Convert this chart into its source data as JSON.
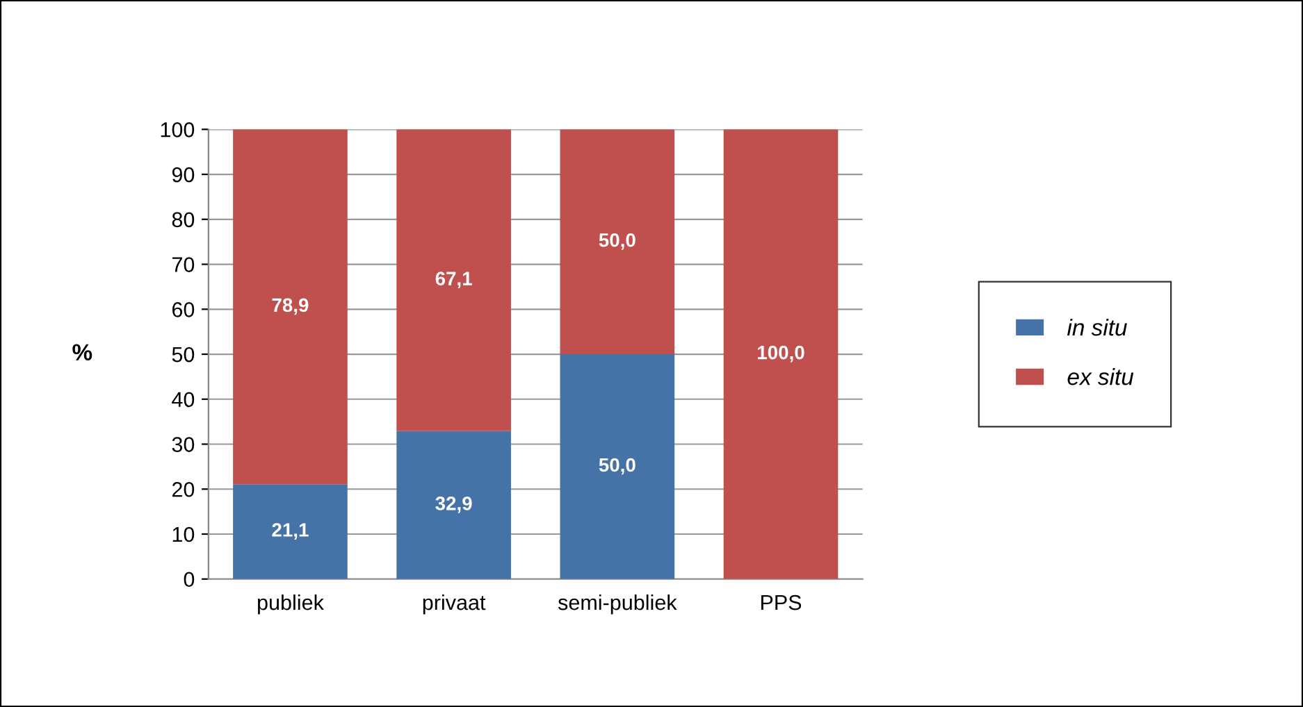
{
  "chart_data": {
    "type": "bar",
    "stacked": true,
    "ylabel": "%",
    "categories": [
      "publiek",
      "privaat",
      "semi-publiek",
      "PPS"
    ],
    "series": [
      {
        "name": "in situ",
        "color": "#4572a7",
        "values": [
          21.1,
          32.9,
          50.0,
          0
        ],
        "value_labels": [
          "21,1",
          "32,9",
          "50,0",
          null
        ]
      },
      {
        "name": "ex situ",
        "color": "#c0504d",
        "values": [
          78.9,
          67.1,
          50.0,
          100.0
        ],
        "value_labels": [
          "78,9",
          "67,1",
          "50,0",
          "100,0"
        ]
      }
    ],
    "ylim": [
      0,
      100
    ],
    "yticks": [
      0,
      10,
      20,
      30,
      40,
      50,
      60,
      70,
      80,
      90,
      100
    ],
    "grid": "y",
    "legend": "right"
  }
}
